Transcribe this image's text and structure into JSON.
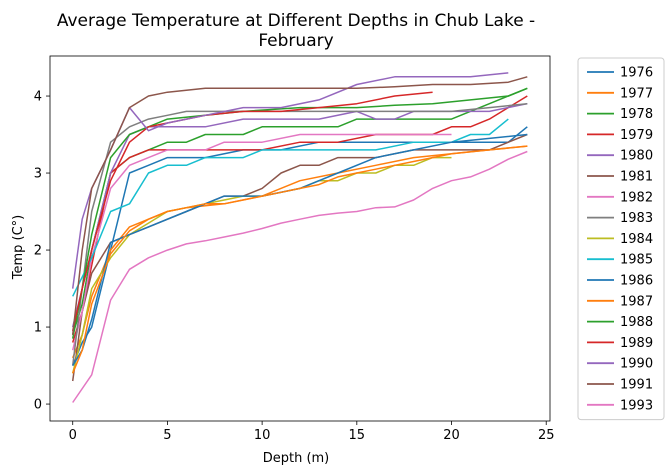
{
  "chart_data": {
    "type": "line",
    "title_line1": "Average Temperature at Different Depths in Chub Lake -",
    "title_line2": "February",
    "xlabel": "Depth (m)",
    "ylabel": "Temp (C°)",
    "xlim": [
      -1.2,
      25.2
    ],
    "ylim": [
      -0.22,
      4.52
    ],
    "xticks": [
      0,
      5,
      10,
      15,
      20,
      25
    ],
    "yticks": [
      0,
      1,
      2,
      3,
      4
    ],
    "legend_position": "outside-right",
    "series": [
      {
        "name": "1976",
        "color": "#1f77b4",
        "x": [
          0,
          0.5,
          1,
          2,
          3,
          4,
          5,
          7,
          9,
          11,
          13,
          15,
          17,
          19,
          21,
          23,
          24
        ],
        "y": [
          0.5,
          0.8,
          1.0,
          2.0,
          3.0,
          3.1,
          3.2,
          3.2,
          3.3,
          3.3,
          3.4,
          3.4,
          3.4,
          3.4,
          3.4,
          3.4,
          3.6
        ]
      },
      {
        "name": "1977",
        "color": "#ff7f0e",
        "x": [
          0,
          0.5,
          1,
          2,
          3,
          4,
          5,
          6,
          8,
          10,
          12,
          14,
          16,
          18,
          20,
          22,
          24
        ],
        "y": [
          0.6,
          0.9,
          1.4,
          2.0,
          2.3,
          2.4,
          2.5,
          2.55,
          2.6,
          2.7,
          2.9,
          3.0,
          3.1,
          3.2,
          3.25,
          3.3,
          3.35
        ]
      },
      {
        "name": "1978",
        "color": "#2ca02c",
        "x": [
          0,
          0.5,
          1,
          2,
          3,
          4,
          5,
          6,
          7,
          9,
          10,
          13,
          14,
          15,
          16,
          18,
          20,
          22,
          24
        ],
        "y": [
          0.9,
          1.3,
          2.0,
          3.0,
          3.2,
          3.3,
          3.4,
          3.4,
          3.5,
          3.5,
          3.6,
          3.6,
          3.6,
          3.7,
          3.7,
          3.7,
          3.7,
          3.9,
          4.1
        ]
      },
      {
        "name": "1979",
        "color": "#d62728",
        "x": [
          0,
          0.5,
          1,
          2,
          3,
          4,
          5,
          6,
          8,
          10,
          12,
          14,
          16,
          18,
          19,
          20,
          21,
          22,
          24
        ],
        "y": [
          0.8,
          1.2,
          1.8,
          3.0,
          3.2,
          3.3,
          3.3,
          3.3,
          3.3,
          3.3,
          3.4,
          3.4,
          3.5,
          3.5,
          3.5,
          3.6,
          3.6,
          3.7,
          4.0
        ]
      },
      {
        "name": "1980",
        "color": "#9467bd",
        "x": [
          0,
          0.5,
          1,
          2,
          3,
          4,
          5,
          7,
          9,
          11,
          13,
          15,
          16,
          17,
          18,
          20,
          22,
          24
        ],
        "y": [
          1.0,
          1.5,
          2.0,
          3.0,
          3.5,
          3.6,
          3.6,
          3.6,
          3.7,
          3.7,
          3.7,
          3.8,
          3.7,
          3.7,
          3.8,
          3.8,
          3.8,
          3.9
        ]
      },
      {
        "name": "1981",
        "color": "#8c564b",
        "x": [
          0,
          0.5,
          1,
          2,
          3,
          4,
          5,
          6,
          7,
          8,
          9,
          10,
          11,
          12,
          13,
          14,
          16,
          18,
          20,
          22,
          24
        ],
        "y": [
          0.3,
          1.2,
          1.7,
          2.1,
          2.2,
          2.3,
          2.4,
          2.5,
          2.6,
          2.7,
          2.7,
          2.8,
          3.0,
          3.1,
          3.1,
          3.2,
          3.2,
          3.3,
          3.3,
          3.3,
          3.5
        ]
      },
      {
        "name": "1982",
        "color": "#e377c2",
        "x": [
          0,
          0.5,
          1,
          2,
          3,
          4,
          5,
          6,
          7,
          8,
          10,
          12,
          14,
          16,
          18,
          20
        ],
        "y": [
          0.7,
          1.2,
          1.9,
          2.8,
          3.1,
          3.2,
          3.3,
          3.3,
          3.3,
          3.4,
          3.4,
          3.5,
          3.5,
          3.5,
          3.5,
          3.5
        ]
      },
      {
        "name": "1983",
        "color": "#7f7f7f",
        "x": [
          0,
          0.5,
          1,
          2,
          3,
          4,
          5,
          6,
          7,
          8,
          10,
          12,
          14,
          16,
          18,
          20,
          22,
          24
        ],
        "y": [
          0.5,
          1.5,
          2.5,
          3.4,
          3.6,
          3.7,
          3.75,
          3.8,
          3.8,
          3.8,
          3.8,
          3.8,
          3.8,
          3.8,
          3.8,
          3.8,
          3.85,
          3.9
        ]
      },
      {
        "name": "1984",
        "color": "#bcbd22",
        "x": [
          0,
          0.5,
          1,
          2,
          3,
          4,
          5,
          6,
          7,
          8,
          9,
          10,
          11,
          12,
          13,
          14,
          15,
          16,
          17,
          18,
          19,
          20
        ],
        "y": [
          0.4,
          0.9,
          1.5,
          1.9,
          2.2,
          2.35,
          2.5,
          2.55,
          2.6,
          2.65,
          2.7,
          2.7,
          2.75,
          2.8,
          2.9,
          2.9,
          3.0,
          3.0,
          3.1,
          3.1,
          3.2,
          3.2
        ]
      },
      {
        "name": "1985",
        "color": "#17becf",
        "x": [
          0,
          1,
          2,
          3,
          4,
          5,
          6,
          7,
          8,
          9,
          10,
          12,
          14,
          16,
          18,
          20,
          21,
          22,
          23
        ],
        "y": [
          1.4,
          1.9,
          2.5,
          2.6,
          3.0,
          3.1,
          3.1,
          3.2,
          3.2,
          3.2,
          3.3,
          3.3,
          3.3,
          3.3,
          3.4,
          3.4,
          3.5,
          3.5,
          3.7
        ]
      },
      {
        "name": "1986",
        "color": "#1f77b4",
        "x": [
          0,
          0.5,
          1,
          2,
          3,
          4,
          6,
          8,
          10,
          12,
          14,
          16,
          18,
          20,
          22,
          24
        ],
        "y": [
          0.5,
          0.7,
          1.1,
          2.1,
          2.2,
          2.3,
          2.5,
          2.7,
          2.7,
          2.8,
          3.0,
          3.2,
          3.3,
          3.4,
          3.45,
          3.5
        ]
      },
      {
        "name": "1987",
        "color": "#ff7f0e",
        "x": [
          0,
          0.5,
          1,
          2,
          3,
          4,
          5,
          6,
          7,
          8,
          9,
          10,
          11,
          12,
          13,
          14,
          15,
          16,
          17,
          18,
          19,
          20,
          22,
          24
        ],
        "y": [
          0.4,
          0.7,
          1.3,
          1.95,
          2.25,
          2.4,
          2.5,
          2.55,
          2.6,
          2.6,
          2.65,
          2.7,
          2.75,
          2.8,
          2.85,
          2.95,
          3.0,
          3.05,
          3.1,
          3.15,
          3.2,
          3.25,
          3.3,
          3.35
        ]
      },
      {
        "name": "1988",
        "color": "#2ca02c",
        "x": [
          0,
          0.5,
          1,
          2,
          3,
          4,
          5,
          7,
          9,
          12,
          15,
          17,
          19,
          21,
          23,
          24
        ],
        "y": [
          0.85,
          1.5,
          2.2,
          3.2,
          3.5,
          3.6,
          3.7,
          3.75,
          3.8,
          3.85,
          3.85,
          3.88,
          3.9,
          3.95,
          4.0,
          4.1
        ]
      },
      {
        "name": "1989",
        "color": "#d62728",
        "x": [
          0,
          0.5,
          1,
          2,
          3,
          4,
          5,
          7,
          9,
          11,
          13,
          15,
          17,
          19
        ],
        "y": [
          0.95,
          1.5,
          2.0,
          2.9,
          3.4,
          3.6,
          3.65,
          3.75,
          3.8,
          3.8,
          3.85,
          3.9,
          4.0,
          4.05
        ]
      },
      {
        "name": "1990",
        "color": "#9467bd",
        "x": [
          0,
          0.5,
          1,
          2,
          3,
          4,
          5,
          7,
          9,
          11,
          13,
          15,
          17,
          19,
          21,
          23
        ],
        "y": [
          1.5,
          2.4,
          2.8,
          3.3,
          3.85,
          3.55,
          3.65,
          3.75,
          3.85,
          3.85,
          3.95,
          4.15,
          4.25,
          4.25,
          4.25,
          4.3
        ]
      },
      {
        "name": "1991",
        "color": "#8c564b",
        "x": [
          0,
          0.5,
          1,
          2,
          3,
          4,
          5,
          7,
          9,
          11,
          13,
          15,
          17,
          19,
          21,
          23,
          24
        ],
        "y": [
          0.9,
          2.0,
          2.8,
          3.3,
          3.85,
          4.0,
          4.05,
          4.1,
          4.1,
          4.1,
          4.1,
          4.1,
          4.12,
          4.15,
          4.15,
          4.18,
          4.25
        ]
      },
      {
        "name": "1993",
        "color": "#e377c2",
        "x": [
          0,
          1,
          2,
          3,
          4,
          5,
          6,
          7,
          8,
          9,
          10,
          11,
          12,
          13,
          14,
          15,
          16,
          17,
          18,
          19,
          20,
          21,
          22,
          23,
          24
        ],
        "y": [
          0.02,
          0.38,
          1.35,
          1.75,
          1.9,
          2.0,
          2.08,
          2.12,
          2.17,
          2.22,
          2.28,
          2.35,
          2.4,
          2.45,
          2.48,
          2.5,
          2.55,
          2.56,
          2.65,
          2.8,
          2.9,
          2.95,
          3.05,
          3.18,
          3.28
        ]
      }
    ]
  }
}
